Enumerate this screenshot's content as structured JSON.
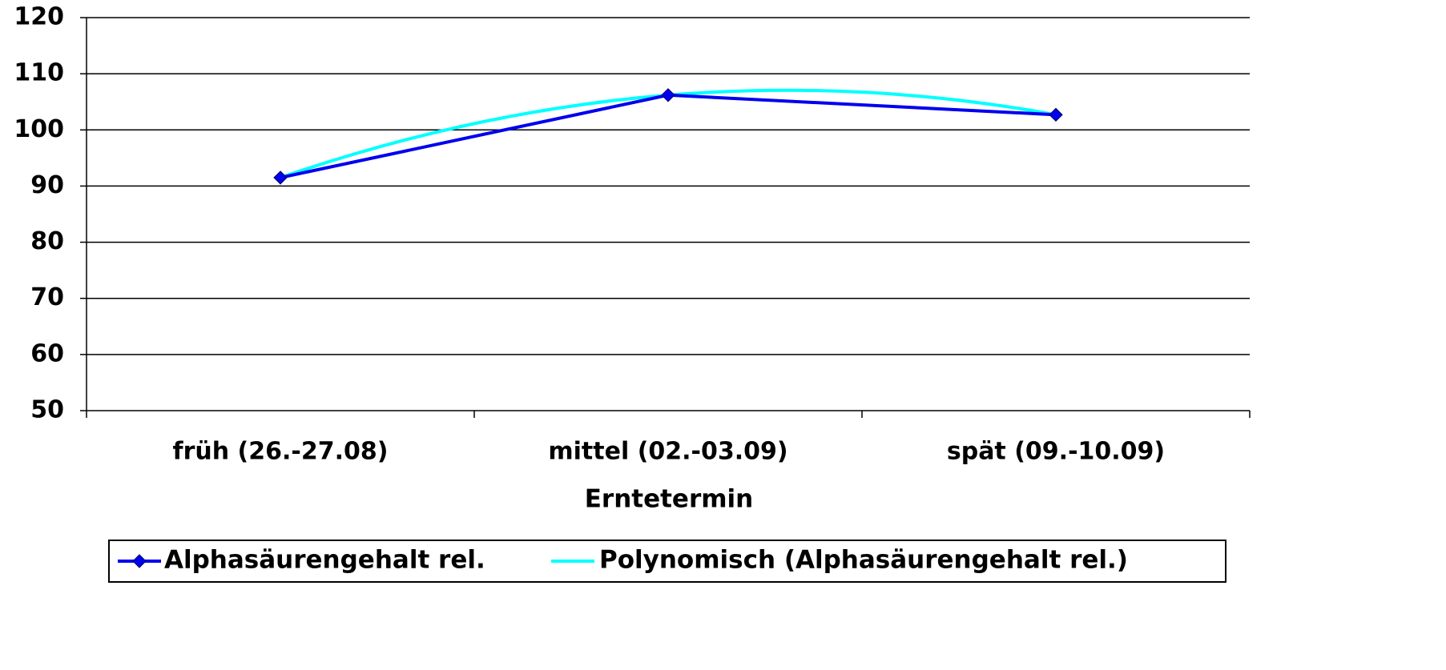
{
  "chart_data": {
    "type": "line",
    "x_label": "Erntetermin",
    "categories": [
      "früh (26.-27.08)",
      "mittel (02.-03.09)",
      "spät (09.-10.09)"
    ],
    "series": [
      {
        "name": "Alphasäurengehalt rel.",
        "color": "#0000ee",
        "marker": "diamond",
        "values": [
          91.5,
          106.2,
          102.7
        ]
      },
      {
        "name": "Polynomisch (Alphasäurengehalt rel.)",
        "color": "#00ffff",
        "trendline": "polynomial",
        "values": [
          91.5,
          106.2,
          102.7
        ]
      }
    ],
    "ylim": [
      50,
      120
    ],
    "yticks": [
      50,
      60,
      70,
      80,
      90,
      100,
      110,
      120
    ],
    "grid": true,
    "legend": "bottom"
  }
}
